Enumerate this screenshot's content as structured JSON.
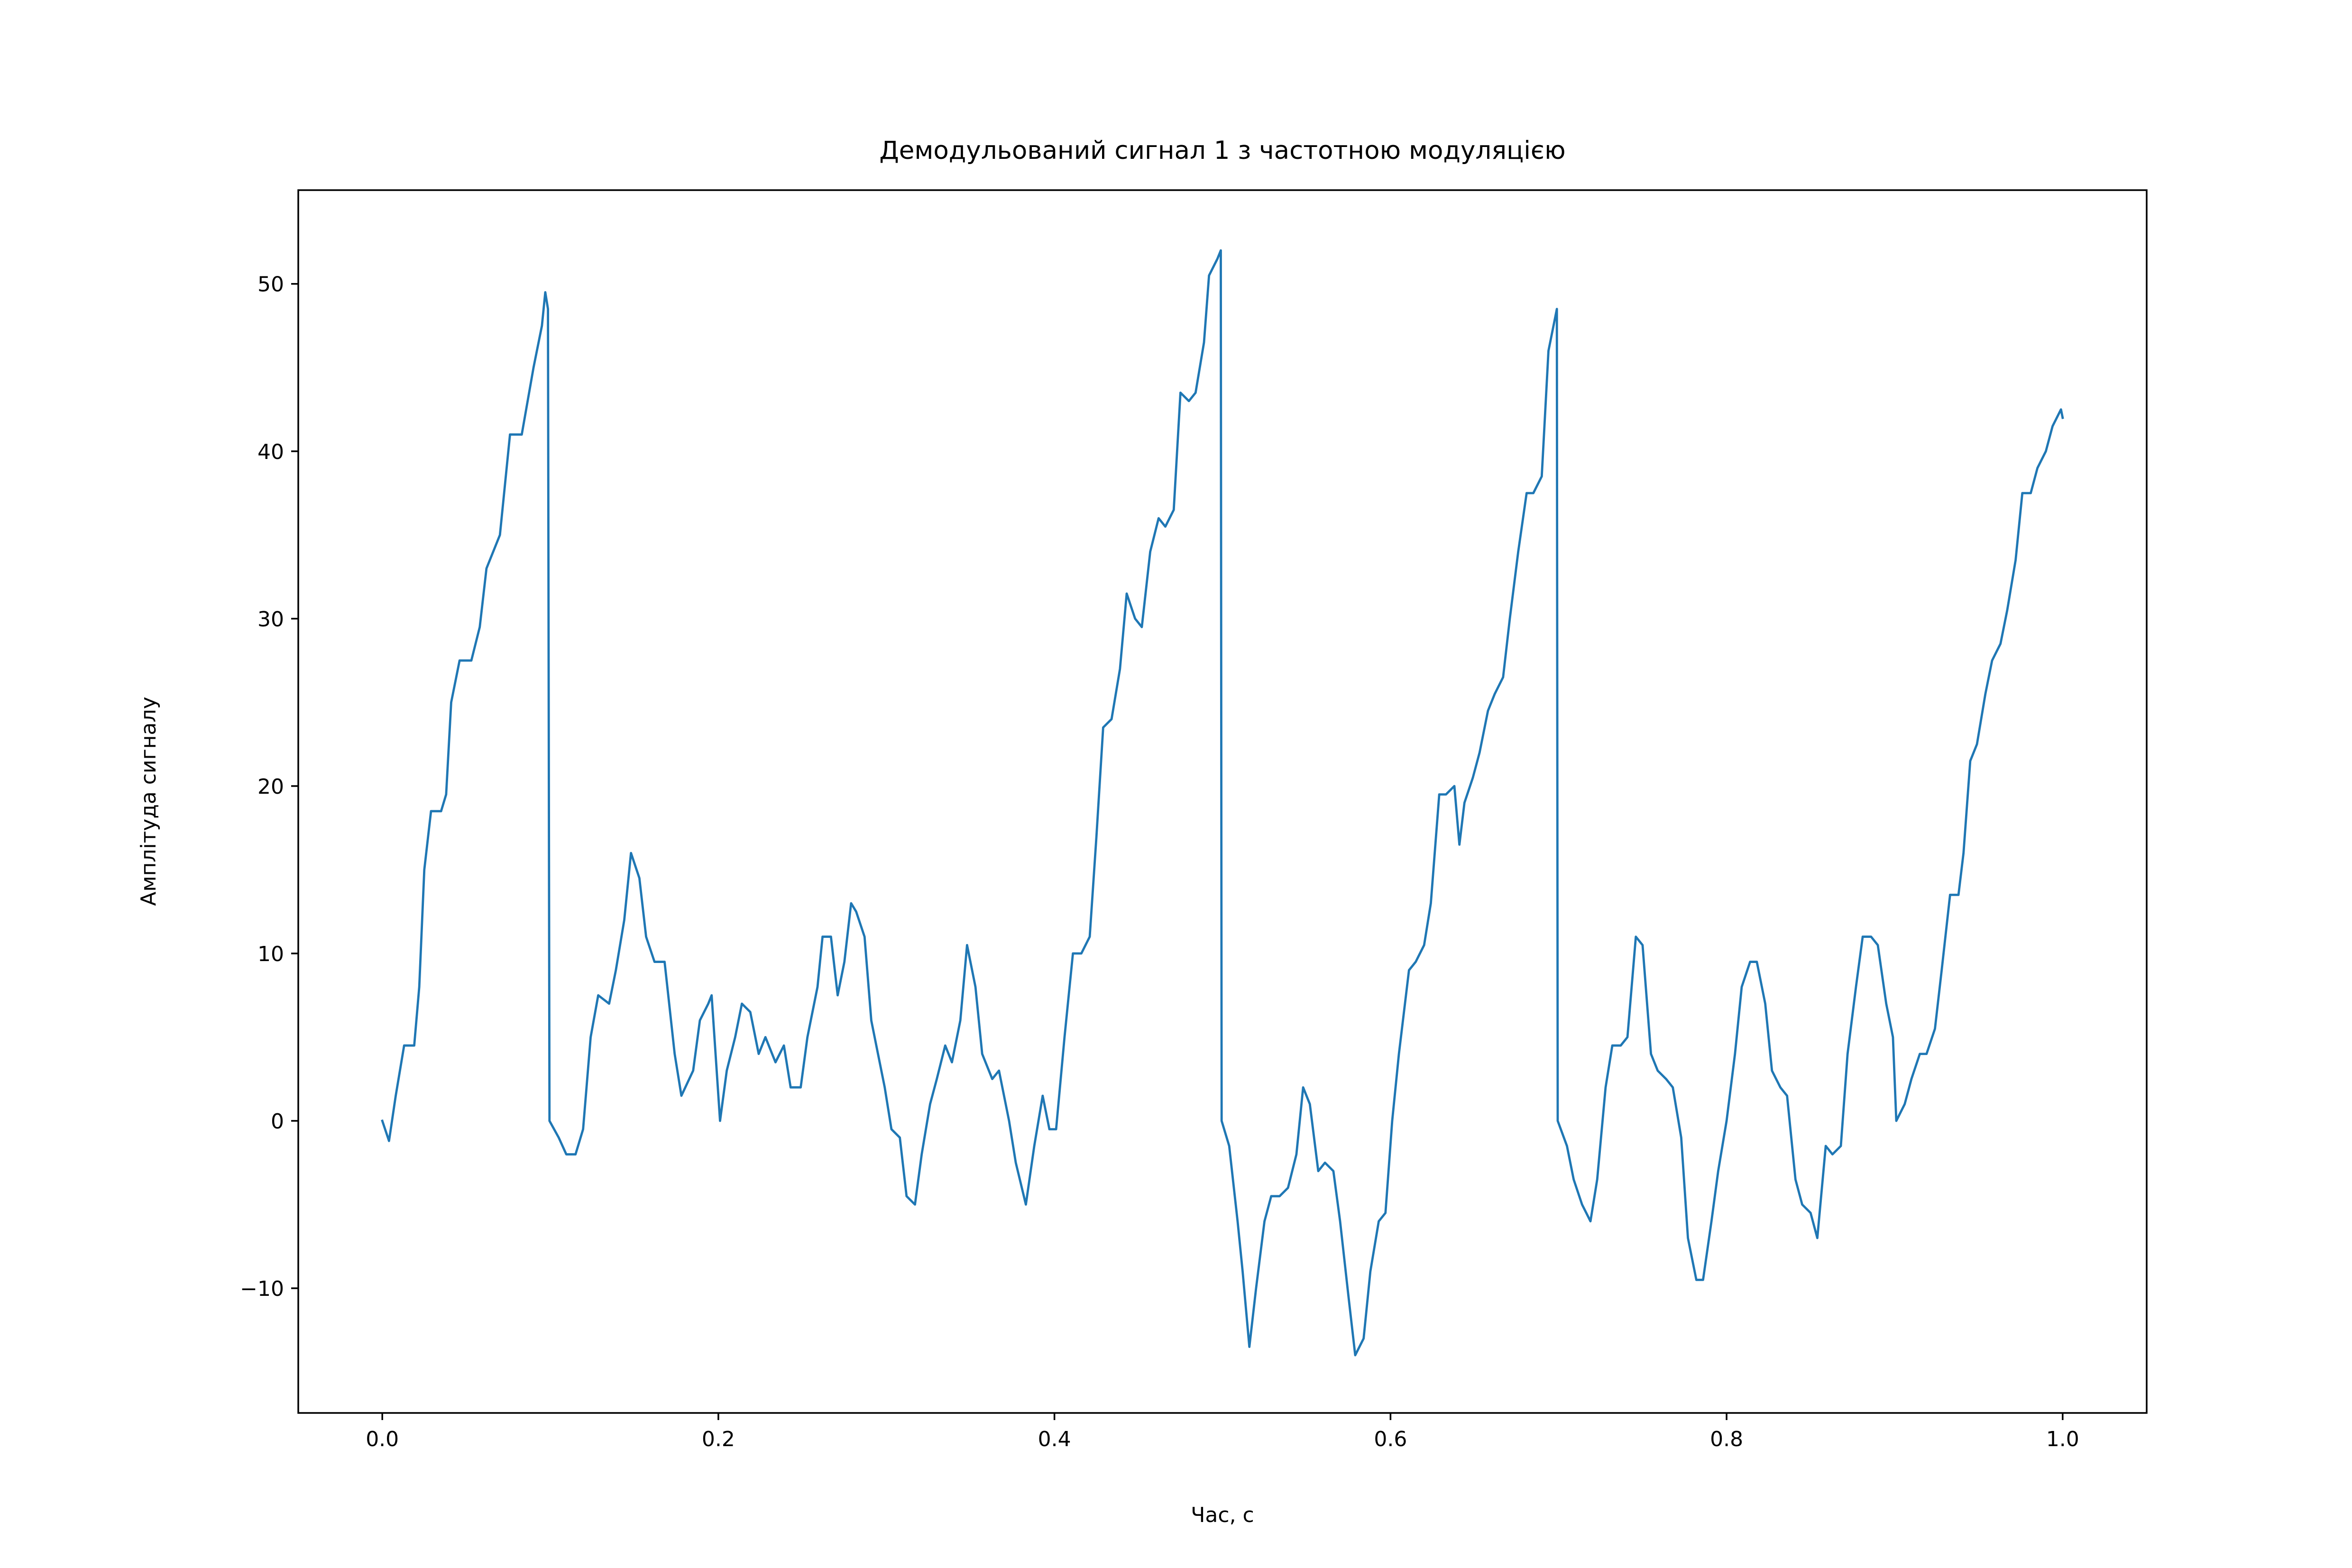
{
  "chart_data": {
    "type": "line",
    "title": "Демодульований сигнал 1 з частотною модуляцією",
    "xlabel": "Час, с",
    "ylabel": "Амплітуда сигналу",
    "xlim": [
      -0.05,
      1.05
    ],
    "ylim": [
      -17.45,
      55.6
    ],
    "xticks": [
      {
        "value": 0,
        "label": "0.0"
      },
      0.2,
      0.4,
      0.6,
      0.8,
      {
        "value": 1,
        "label": "1.0"
      }
    ],
    "yticks": [
      {
        "value": -10,
        "label": "−10"
      },
      0,
      10,
      20,
      30,
      40,
      50
    ],
    "grid": false,
    "series": [
      {
        "color": "#1f77b4",
        "x": [
          0,
          0.004,
          0.008,
          0.013,
          0.019,
          0.022,
          0.025,
          0.029,
          0.035,
          0.038,
          0.041,
          0.046,
          0.053,
          0.058,
          0.062,
          0.07,
          0.076,
          0.083,
          0.09,
          0.095,
          0.097,
          0.0986,
          0.0995,
          0.105,
          0.1095,
          0.115,
          0.1195,
          0.124,
          0.1285,
          0.135,
          0.139,
          0.144,
          0.148,
          0.153,
          0.157,
          0.162,
          0.168,
          0.174,
          0.178,
          0.185,
          0.189,
          0.194,
          0.196,
          0.201,
          0.205,
          0.21,
          0.214,
          0.219,
          0.224,
          0.228,
          0.234,
          0.239,
          0.243,
          0.249,
          0.253,
          0.259,
          0.262,
          0.267,
          0.271,
          0.275,
          0.279,
          0.282,
          0.287,
          0.291,
          0.295,
          0.299,
          0.303,
          0.308,
          0.312,
          0.317,
          0.321,
          0.326,
          0.33,
          0.335,
          0.339,
          0.344,
          0.348,
          0.353,
          0.357,
          0.363,
          0.367,
          0.373,
          0.377,
          0.383,
          0.388,
          0.393,
          0.397,
          0.401,
          0.406,
          0.411,
          0.416,
          0.421,
          0.425,
          0.429,
          0.434,
          0.439,
          0.443,
          0.448,
          0.452,
          0.457,
          0.462,
          0.466,
          0.471,
          0.475,
          0.48,
          0.484,
          0.489,
          0.492,
          0.497,
          0.499,
          0.4995,
          0.504,
          0.509,
          0.512,
          0.516,
          0.52,
          0.525,
          0.529,
          0.534,
          0.539,
          0.544,
          0.548,
          0.552,
          0.557,
          0.561,
          0.566,
          0.57,
          0.575,
          0.579,
          0.584,
          0.588,
          0.593,
          0.597,
          0.601,
          0.605,
          0.611,
          0.615,
          0.62,
          0.624,
          0.629,
          0.633,
          0.638,
          0.641,
          0.644,
          0.649,
          0.653,
          0.658,
          0.662,
          0.667,
          0.671,
          0.676,
          0.681,
          0.685,
          0.69,
          0.694,
          0.699,
          0.6995,
          0.705,
          0.709,
          0.714,
          0.719,
          0.723,
          0.728,
          0.732,
          0.737,
          0.741,
          0.746,
          0.75,
          0.755,
          0.759,
          0.764,
          0.768,
          0.773,
          0.777,
          0.782,
          0.786,
          0.791,
          0.795,
          0.8,
          0.805,
          0.809,
          0.814,
          0.818,
          0.823,
          0.827,
          0.832,
          0.836,
          0.841,
          0.845,
          0.85,
          0.854,
          0.859,
          0.863,
          0.868,
          0.872,
          0.877,
          0.881,
          0.886,
          0.89,
          0.895,
          0.899,
          0.901,
          0.906,
          0.91,
          0.915,
          0.919,
          0.924,
          0.928,
          0.933,
          0.938,
          0.941,
          0.945,
          0.949,
          0.954,
          0.958,
          0.963,
          0.967,
          0.972,
          0.976,
          0.981,
          0.985,
          0.99,
          0.994,
          0.999,
          1.0
        ],
        "values": [
          0,
          -1.2,
          1.5,
          4.5,
          4.5,
          8,
          15,
          18.5,
          18.5,
          19.5,
          25,
          27.5,
          27.5,
          29.5,
          33,
          35,
          41,
          41,
          45,
          47.5,
          49.5,
          48.5,
          0,
          -1,
          -2,
          -2,
          -0.5,
          5,
          7.5,
          7,
          9,
          12,
          16,
          14.5,
          11,
          9.5,
          9.5,
          4,
          1.5,
          3,
          6,
          7,
          7.5,
          0,
          3,
          5,
          7,
          6.5,
          4,
          5,
          3.5,
          4.5,
          2,
          2,
          5,
          8,
          11,
          11,
          7.5,
          9.5,
          13,
          12.5,
          11,
          6,
          4,
          2,
          -0.5,
          -1,
          -4.5,
          -5,
          -2,
          1,
          2.5,
          4.5,
          3.5,
          6,
          10.5,
          8,
          4,
          2.5,
          3,
          0,
          -2.5,
          -5,
          -1.5,
          1.5,
          -0.5,
          -0.5,
          5,
          10,
          10,
          11,
          17,
          23.5,
          24,
          27,
          31.5,
          30,
          29.5,
          34,
          36,
          35.5,
          36.5,
          43.5,
          43,
          43.5,
          46.5,
          50.5,
          51.5,
          52,
          0,
          -1.5,
          -6,
          -9,
          -13.5,
          -10,
          -6,
          -4.5,
          -4.5,
          -4,
          -2,
          2,
          1,
          -3,
          -2.5,
          -3,
          -6,
          -10.5,
          -14,
          -13,
          -9,
          -6,
          -5.5,
          0,
          4,
          9,
          9.5,
          10.5,
          13,
          19.5,
          19.5,
          20,
          16.5,
          19,
          20.5,
          22,
          24.5,
          25.5,
          26.5,
          30,
          34,
          37.5,
          37.5,
          38.5,
          46,
          48.5,
          0,
          -1.5,
          -3.5,
          -5,
          -6,
          -3.5,
          2,
          4.5,
          4.5,
          5,
          11,
          10.5,
          4,
          3,
          2.5,
          2,
          -1,
          -7,
          -9.5,
          -9.5,
          -6,
          -3,
          0,
          4,
          8,
          9.5,
          9.5,
          7,
          3,
          2,
          1.5,
          -3.5,
          -5,
          -5.5,
          -7,
          -1.5,
          -2,
          -1.5,
          4,
          8,
          11,
          11,
          10.5,
          7,
          5,
          0,
          1,
          2.5,
          4,
          4,
          5.5,
          9,
          13.5,
          13.5,
          16,
          21.5,
          22.5,
          25.5,
          27.5,
          28.5,
          30.5,
          33.5,
          37.5,
          37.5,
          39,
          40,
          41.5,
          42.5,
          42
        ]
      }
    ]
  }
}
